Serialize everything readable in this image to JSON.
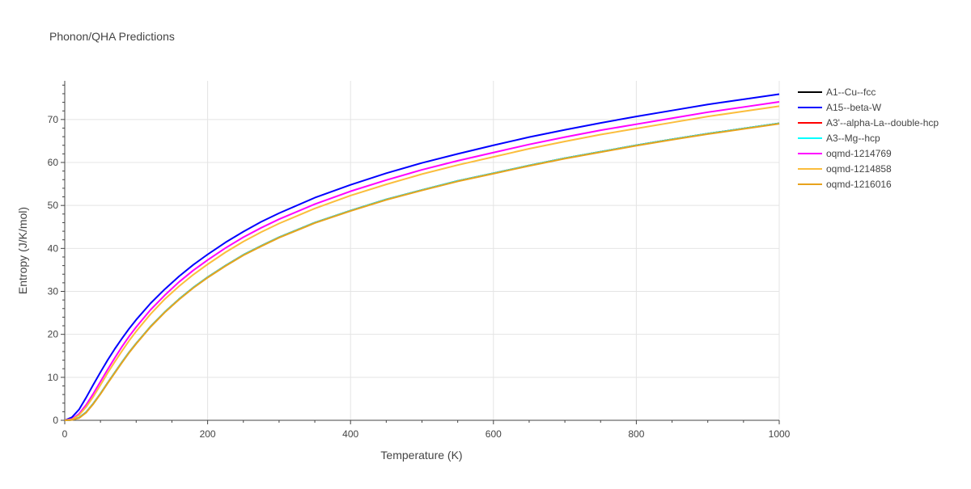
{
  "chart_data": {
    "type": "line",
    "title": "Phonon/QHA Predictions",
    "xlabel": "Temperature (K)",
    "ylabel": "Entropy (J/K/mol)",
    "xlim": [
      0,
      1000
    ],
    "ylim": [
      0,
      79
    ],
    "xticks": [
      0,
      200,
      400,
      600,
      800,
      1000
    ],
    "yticks": [
      0,
      10,
      20,
      30,
      40,
      50,
      60,
      70
    ],
    "grid": true,
    "legend_position": "right",
    "x": [
      0,
      10,
      20,
      30,
      40,
      50,
      60,
      70,
      80,
      90,
      100,
      120,
      140,
      160,
      180,
      200,
      225,
      250,
      275,
      300,
      350,
      400,
      450,
      500,
      550,
      600,
      650,
      700,
      750,
      800,
      850,
      900,
      950,
      1000
    ],
    "series": [
      {
        "name": "A1--Cu--fcc",
        "color": "#000000",
        "values": [
          0,
          0.1,
          0.6,
          1.9,
          3.9,
          6.2,
          8.7,
          11.1,
          13.5,
          15.8,
          17.9,
          21.8,
          25.2,
          28.2,
          30.9,
          33.3,
          36.0,
          38.5,
          40.6,
          42.6,
          46.0,
          48.8,
          51.4,
          53.6,
          55.7,
          57.5,
          59.3,
          61.0,
          62.5,
          64.0,
          65.4,
          66.7,
          67.9,
          69.1
        ]
      },
      {
        "name": "A15--beta-W",
        "color": "#0000ff",
        "values": [
          0,
          0.7,
          2.5,
          5.3,
          8.3,
          11.2,
          14.0,
          16.6,
          19.0,
          21.3,
          23.4,
          27.2,
          30.5,
          33.5,
          36.2,
          38.6,
          41.4,
          43.9,
          46.2,
          48.2,
          51.8,
          54.8,
          57.5,
          59.9,
          62.0,
          64.0,
          65.9,
          67.6,
          69.2,
          70.7,
          72.1,
          73.5,
          74.7,
          75.9
        ]
      },
      {
        "name": "A3'--alpha-La--double-hcp",
        "color": "#ff0000",
        "values": [
          0,
          0.1,
          0.6,
          1.9,
          3.9,
          6.2,
          8.7,
          11.1,
          13.5,
          15.8,
          17.9,
          21.8,
          25.2,
          28.2,
          30.9,
          33.3,
          36.0,
          38.5,
          40.6,
          42.6,
          46.0,
          48.8,
          51.4,
          53.6,
          55.7,
          57.5,
          59.3,
          61.0,
          62.5,
          64.0,
          65.4,
          66.7,
          67.9,
          69.1
        ]
      },
      {
        "name": "A3--Mg--hcp",
        "color": "#00ffff",
        "values": [
          0,
          0.1,
          0.6,
          1.9,
          3.9,
          6.2,
          8.7,
          11.1,
          13.5,
          15.8,
          17.9,
          21.8,
          25.2,
          28.2,
          30.9,
          33.3,
          36.0,
          38.5,
          40.6,
          42.6,
          46.0,
          48.8,
          51.4,
          53.6,
          55.7,
          57.5,
          59.3,
          61.0,
          62.5,
          64.0,
          65.4,
          66.7,
          67.9,
          69.1
        ]
      },
      {
        "name": "oqmd-1214769",
        "color": "#ff00ff",
        "values": [
          0,
          0.3,
          1.5,
          3.6,
          6.2,
          9.0,
          11.8,
          14.5,
          17.1,
          19.5,
          21.7,
          25.7,
          29.1,
          32.2,
          34.9,
          37.3,
          40.1,
          42.6,
          44.8,
          46.8,
          50.3,
          53.3,
          55.9,
          58.3,
          60.4,
          62.3,
          64.2,
          65.9,
          67.5,
          68.9,
          70.3,
          71.7,
          72.9,
          74.1
        ]
      },
      {
        "name": "oqmd-1214858",
        "color": "#fbbd3c",
        "values": [
          0,
          0.2,
          1.2,
          3.1,
          5.5,
          8.2,
          11.0,
          13.6,
          16.1,
          18.5,
          20.7,
          24.7,
          28.2,
          31.2,
          33.9,
          36.3,
          39.1,
          41.6,
          43.8,
          45.8,
          49.3,
          52.3,
          54.9,
          57.3,
          59.4,
          61.3,
          63.2,
          64.9,
          66.5,
          67.9,
          69.3,
          70.7,
          71.9,
          73.1
        ]
      },
      {
        "name": "oqmd-1216016",
        "color": "#e8a21c",
        "values": [
          0,
          0.1,
          0.5,
          1.8,
          3.8,
          6.1,
          8.6,
          11.0,
          13.4,
          15.7,
          17.8,
          21.7,
          25.1,
          28.1,
          30.8,
          33.2,
          35.9,
          38.4,
          40.5,
          42.5,
          45.9,
          48.7,
          51.3,
          53.5,
          55.6,
          57.4,
          59.2,
          60.9,
          62.4,
          63.9,
          65.3,
          66.6,
          67.8,
          69.0
        ]
      }
    ]
  }
}
